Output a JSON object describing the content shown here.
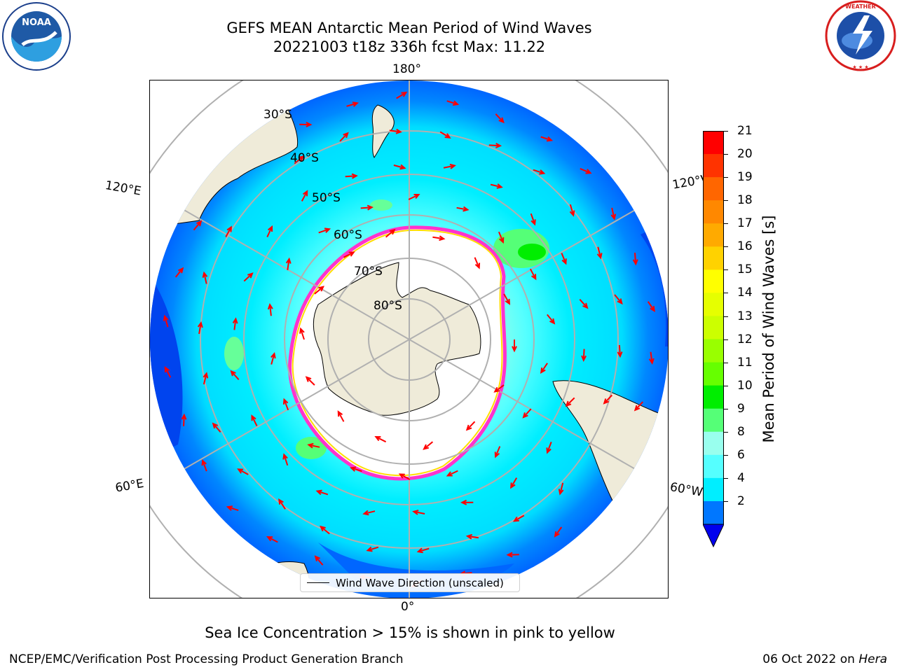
{
  "title": {
    "line1": "GEFS MEAN Antarctic Mean Period of Wind Waves",
    "line2": "20221003 t18z 336h fcst   Max: 11.22"
  },
  "logos": {
    "left": "NOAA",
    "right": "NATIONAL WEATHER SERVICE"
  },
  "map": {
    "projection": "south-polar-stereographic",
    "longitude_labels": {
      "top": "180°",
      "bottom": "0°",
      "upper_left": "120°E",
      "lower_left": "60°E",
      "upper_right": "120°W",
      "lower_right": "60°W"
    },
    "latitude_labels": [
      "30°S",
      "40°S",
      "50°S",
      "60°S",
      "70°S",
      "80°S"
    ],
    "legend_label": "Wind Wave Direction (unscaled)",
    "land_color": "#efebd9",
    "arrow_color": "#ff0000",
    "sea_ice_color": "#ff33cc"
  },
  "colorbar": {
    "label": "Mean Period of Wind Waves [s]",
    "ticks": [
      "21",
      "20",
      "19",
      "18",
      "17",
      "16",
      "15",
      "14",
      "13",
      "12",
      "11",
      "10",
      "9",
      "8",
      "6",
      "4",
      "2"
    ],
    "colors": [
      "#ff0000",
      "#ff3300",
      "#ff6600",
      "#ff8800",
      "#ffaa00",
      "#ffd200",
      "#ffff00",
      "#e6ff00",
      "#ccff00",
      "#99ff00",
      "#66ff00",
      "#00ee00",
      "#55ff77",
      "#99ffee",
      "#55ffff",
      "#00eeff",
      "#0077ff"
    ],
    "under_color": "#0000ee"
  },
  "footer": {
    "note": "Sea Ice Concentration > 15% is shown in pink to yellow",
    "left": "NCEP/EMC/Verification Post Processing Product Generation Branch",
    "date": "06 Oct 2022 on",
    "machine": "Hera"
  }
}
